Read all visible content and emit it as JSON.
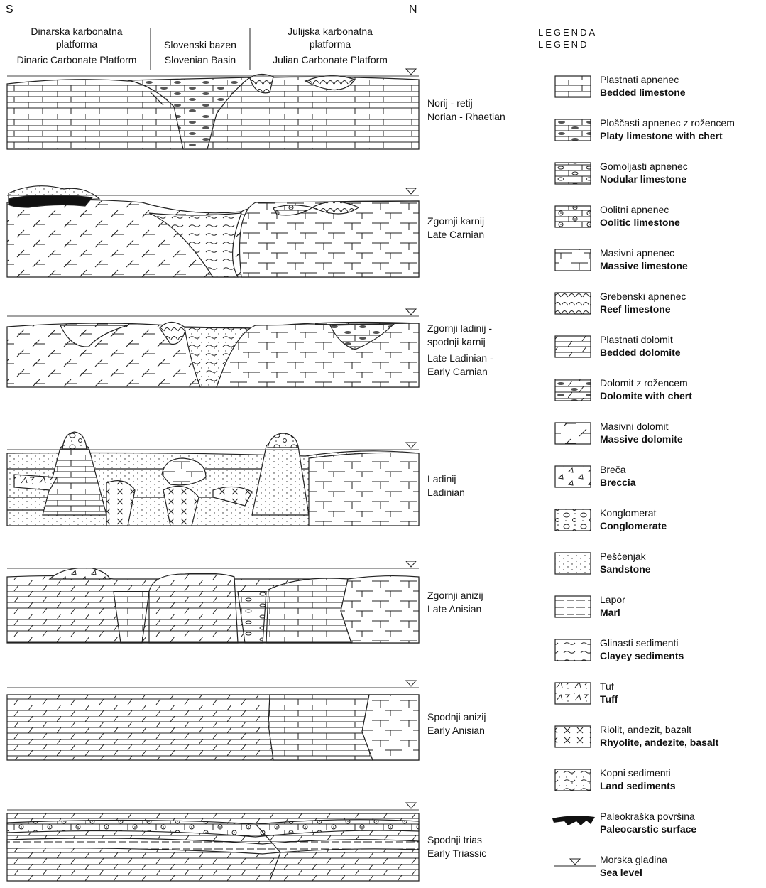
{
  "compass": {
    "south": "S",
    "north": "N"
  },
  "header": {
    "columns": [
      {
        "lines": [
          "Dinarska karbonatna",
          "platforma",
          "Dinaric Carbonate Platform"
        ]
      },
      {
        "lines": [
          "Slovenski bazen",
          "Slovenian Basin"
        ]
      },
      {
        "lines": [
          "Julijska karbonatna",
          "platforma",
          "Julian Carbonate Platform"
        ]
      }
    ]
  },
  "panels": [
    {
      "label": [
        "Norij - retij",
        "Norian - Rhaetian"
      ]
    },
    {
      "label": [
        "Zgornji karnij",
        "Late Carnian"
      ]
    },
    {
      "label": [
        "Zgornji ladinij -",
        "spodnji karnij",
        "Late Ladinian -",
        "Early Carnian"
      ]
    },
    {
      "label": [
        "Ladinij",
        "Ladinian"
      ]
    },
    {
      "label": [
        "Zgornji anizij",
        "Late Anisian"
      ]
    },
    {
      "label": [
        "Spodnji anizij",
        "Early Anisian"
      ]
    },
    {
      "label": [
        "Spodnji trias",
        "Early Triassic"
      ]
    }
  ],
  "legend": {
    "title": [
      "LEGENDA",
      "LEGEND"
    ],
    "items": [
      {
        "sl": "Plastnati apnenec",
        "en": "Bedded limestone"
      },
      {
        "sl": "Ploščasti apnenec z rožencem",
        "en": "Platy limestone with chert"
      },
      {
        "sl": "Gomoljasti apnenec",
        "en": "Nodular limestone"
      },
      {
        "sl": "Oolitni apnenec",
        "en": "Oolitic limestone"
      },
      {
        "sl": "Masivni apnenec",
        "en": "Massive limestone"
      },
      {
        "sl": "Grebenski apnenec",
        "en": "Reef limestone"
      },
      {
        "sl": "Plastnati dolomit",
        "en": "Bedded dolomite"
      },
      {
        "sl": "Dolomit z rožencem",
        "en": "Dolomite with chert"
      },
      {
        "sl": "Masivni dolomit",
        "en": "Massive dolomite"
      },
      {
        "sl": "Breča",
        "en": "Breccia"
      },
      {
        "sl": "Konglomerat",
        "en": "Conglomerate"
      },
      {
        "sl": "Peščenjak",
        "en": "Sandstone"
      },
      {
        "sl": "Lapor",
        "en": "Marl"
      },
      {
        "sl": "Glinasti sedimenti",
        "en": "Clayey sediments"
      },
      {
        "sl": "Tuf",
        "en": "Tuff"
      },
      {
        "sl": "Riolit, andezit, bazalt",
        "en": "Rhyolite, andezite, basalt"
      },
      {
        "sl": "Kopni sedimenti",
        "en": "Land sediments"
      },
      {
        "sl": "Paleokraška površina",
        "en": "Paleocarstic surface"
      },
      {
        "sl": "Morska gladina",
        "en": "Sea level"
      }
    ]
  }
}
